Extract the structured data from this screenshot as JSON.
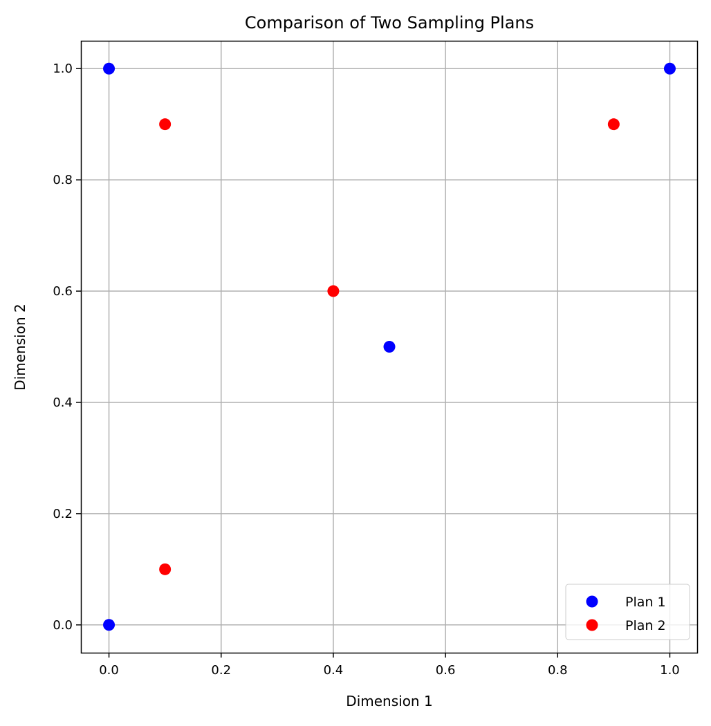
{
  "chart_data": {
    "type": "scatter",
    "title": "Comparison of Two Sampling Plans",
    "xlabel": "Dimension 1",
    "ylabel": "Dimension 2",
    "xlim": [
      -0.05,
      1.05
    ],
    "ylim": [
      -0.05,
      1.05
    ],
    "xticks": [
      0.0,
      0.2,
      0.4,
      0.6,
      0.8,
      1.0
    ],
    "yticks": [
      0.0,
      0.2,
      0.4,
      0.6,
      0.8,
      1.0
    ],
    "xtick_labels": [
      "0.0",
      "0.2",
      "0.4",
      "0.6",
      "0.8",
      "1.0"
    ],
    "ytick_labels": [
      "0.0",
      "0.2",
      "0.4",
      "0.6",
      "0.8",
      "1.0"
    ],
    "grid": true,
    "legend_position": "lower-right",
    "series": [
      {
        "name": "Plan 1",
        "color": "#0000ff",
        "x": [
          0,
          0,
          0.5,
          1
        ],
        "y": [
          0,
          1,
          0.5,
          1
        ]
      },
      {
        "name": "Plan 2",
        "color": "#ff0000",
        "x": [
          0.1,
          0.1,
          0.4,
          0.9
        ],
        "y": [
          0.1,
          0.9,
          0.6,
          0.9
        ]
      }
    ]
  }
}
